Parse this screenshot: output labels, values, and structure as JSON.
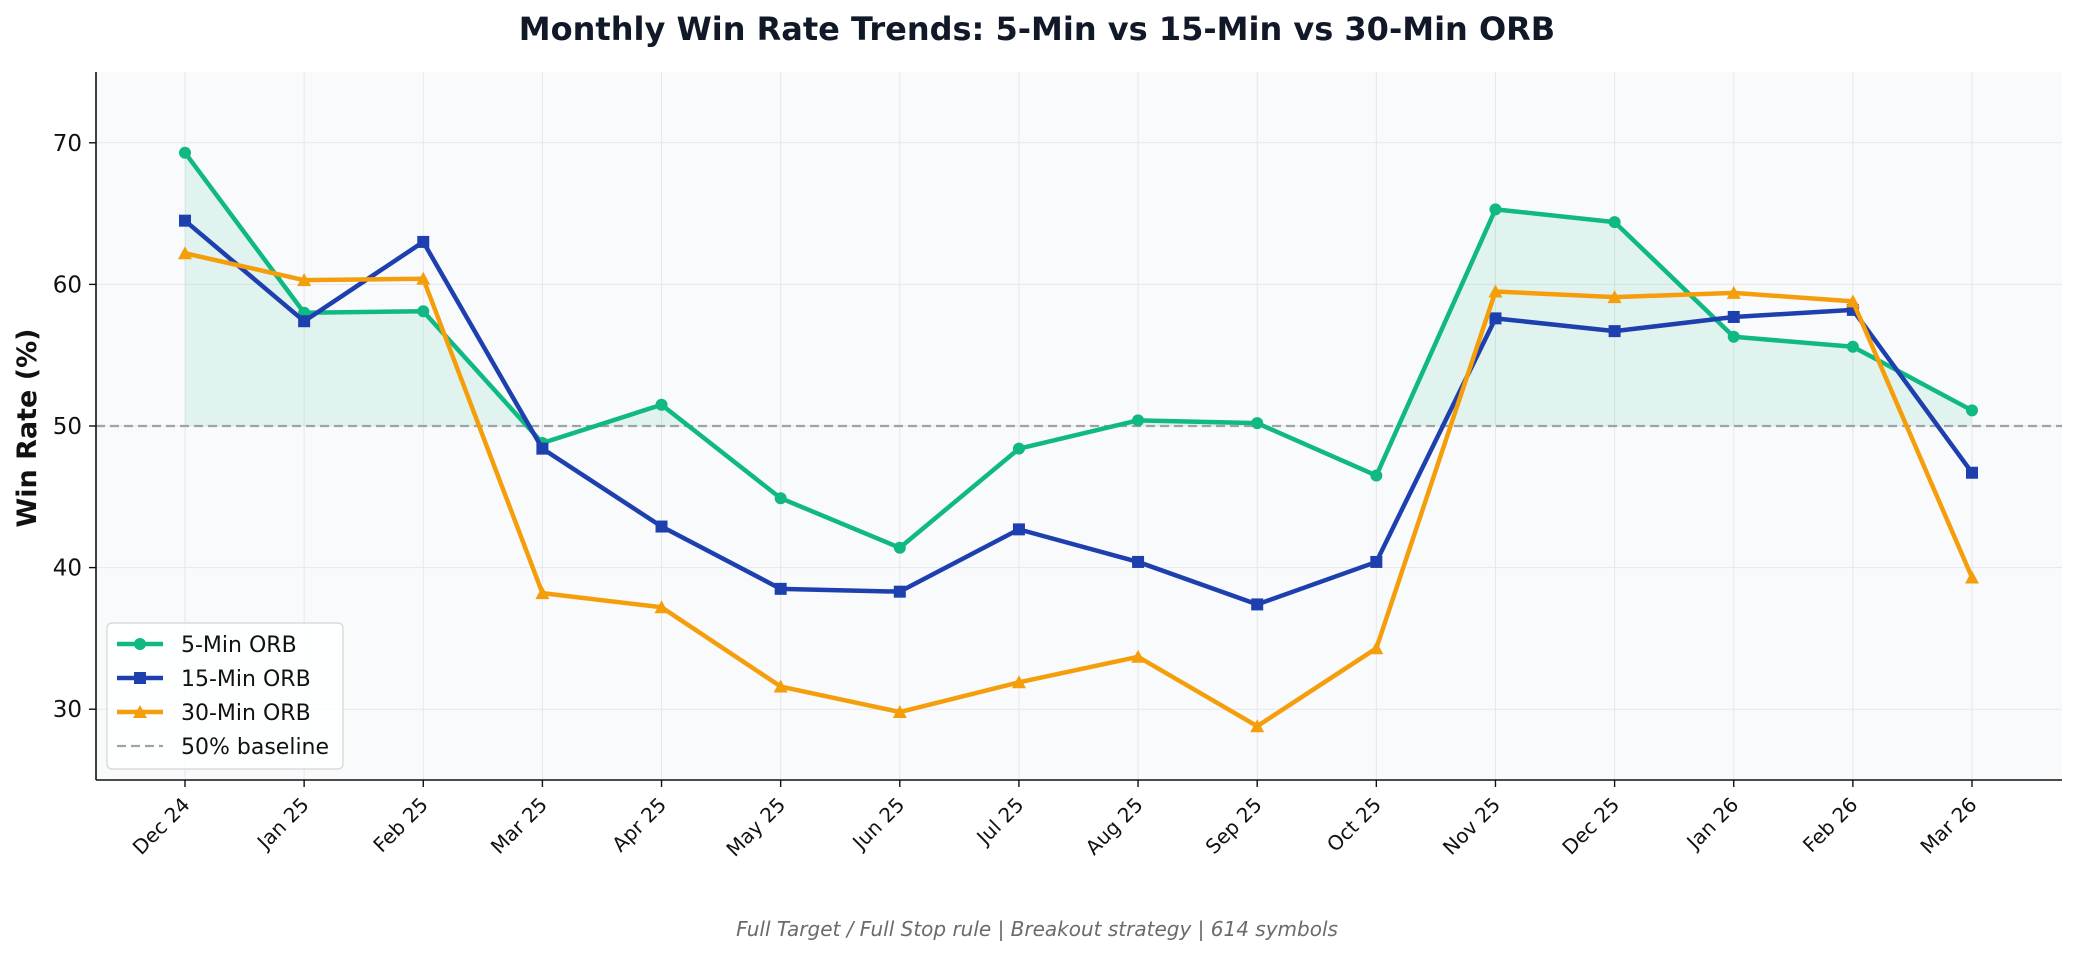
{
  "chart_data": {
    "type": "line",
    "title": "Monthly Win Rate Trends: 5-Min vs 15-Min vs 30-Min ORB",
    "ylabel": "Win Rate (%)",
    "xlabel": "",
    "footer": "Full Target / Full Stop rule | Breakout strategy | 614 symbols",
    "categories": [
      "Dec 24",
      "Jan 25",
      "Feb 25",
      "Mar 25",
      "Apr 25",
      "May 25",
      "Jun 25",
      "Jul 25",
      "Aug 25",
      "Sep 25",
      "Oct 25",
      "Nov 25",
      "Dec 25",
      "Jan 26",
      "Feb 26",
      "Mar 26"
    ],
    "ylim": [
      25,
      75
    ],
    "yticks": [
      30,
      40,
      50,
      60,
      70
    ],
    "grid": true,
    "legend_position": "bottom-left",
    "series": [
      {
        "name": "5-Min ORB",
        "color": "#10b981",
        "marker": "circle",
        "values": [
          69.3,
          58.0,
          58.1,
          48.8,
          51.5,
          44.9,
          41.4,
          48.4,
          50.4,
          50.2,
          46.5,
          65.3,
          64.4,
          56.3,
          55.6,
          51.1
        ]
      },
      {
        "name": "15-Min ORB",
        "color": "#1e40af",
        "marker": "square",
        "values": [
          64.5,
          57.4,
          63.0,
          48.4,
          42.9,
          38.5,
          38.3,
          42.7,
          40.4,
          37.4,
          40.4,
          57.6,
          56.7,
          57.7,
          58.2,
          46.7
        ]
      },
      {
        "name": "30-Min ORB",
        "color": "#f59e0b",
        "marker": "triangle",
        "values": [
          62.2,
          60.3,
          60.4,
          38.2,
          37.2,
          31.6,
          29.8,
          31.9,
          33.7,
          28.8,
          34.3,
          59.5,
          59.1,
          59.4,
          58.8,
          39.3
        ]
      }
    ],
    "baseline": {
      "name": "50% baseline",
      "value": 50,
      "color": "#9ca3af"
    }
  }
}
